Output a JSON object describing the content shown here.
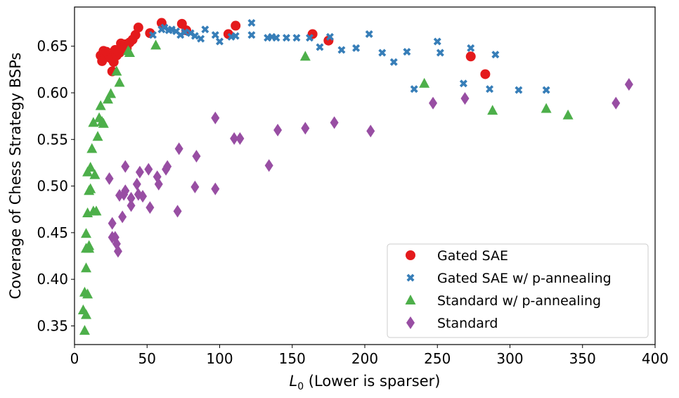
{
  "chart_data": {
    "type": "scatter",
    "xlabel_math": "L",
    "xlabel_sub": "0",
    "xlabel_rest": " (Lower is sparser)",
    "ylabel": "Coverage of Chess Strategy BSPs",
    "xlim": [
      0,
      400
    ],
    "ylim": [
      0.33,
      0.692
    ],
    "x_ticks": [
      0,
      50,
      100,
      150,
      200,
      250,
      300,
      350,
      400
    ],
    "x_tick_labels": [
      "0",
      "50",
      "100",
      "150",
      "200",
      "250",
      "300",
      "350",
      "400"
    ],
    "y_ticks": [
      0.35,
      0.4,
      0.45,
      0.5,
      0.55,
      0.6,
      0.65
    ],
    "y_tick_labels": [
      "0.35",
      "0.40",
      "0.45",
      "0.50",
      "0.55",
      "0.60",
      "0.65"
    ],
    "grid": false,
    "legend_position": "lower-right",
    "series": [
      {
        "name": "Gated SAE",
        "marker": "circle",
        "color": "#e41a1c",
        "points": [
          [
            18,
            0.64
          ],
          [
            19,
            0.634
          ],
          [
            20,
            0.645
          ],
          [
            21,
            0.638
          ],
          [
            22,
            0.644
          ],
          [
            23,
            0.642
          ],
          [
            24,
            0.64
          ],
          [
            25,
            0.637
          ],
          [
            26,
            0.623
          ],
          [
            27,
            0.633
          ],
          [
            27,
            0.644
          ],
          [
            28,
            0.646
          ],
          [
            29,
            0.64
          ],
          [
            30,
            0.645
          ],
          [
            31,
            0.643
          ],
          [
            32,
            0.653
          ],
          [
            33,
            0.648
          ],
          [
            34,
            0.65
          ],
          [
            35,
            0.652
          ],
          [
            36,
            0.648
          ],
          [
            38,
            0.654
          ],
          [
            40,
            0.657
          ],
          [
            42,
            0.662
          ],
          [
            44,
            0.67
          ],
          [
            52,
            0.664
          ],
          [
            60,
            0.675
          ],
          [
            74,
            0.674
          ],
          [
            77,
            0.667
          ],
          [
            106,
            0.663
          ],
          [
            111,
            0.672
          ],
          [
            164,
            0.663
          ],
          [
            175,
            0.656
          ],
          [
            273,
            0.639
          ],
          [
            283,
            0.62
          ]
        ]
      },
      {
        "name": "Gated SAE w/ p-annealing",
        "marker": "x",
        "color": "#377eb8",
        "points": [
          [
            54,
            0.662
          ],
          [
            60,
            0.668
          ],
          [
            62,
            0.67
          ],
          [
            65,
            0.667
          ],
          [
            67,
            0.668
          ],
          [
            70,
            0.666
          ],
          [
            73,
            0.662
          ],
          [
            76,
            0.665
          ],
          [
            80,
            0.664
          ],
          [
            83,
            0.661
          ],
          [
            87,
            0.658
          ],
          [
            90,
            0.668
          ],
          [
            97,
            0.662
          ],
          [
            100,
            0.655
          ],
          [
            108,
            0.66
          ],
          [
            111,
            0.661
          ],
          [
            122,
            0.662
          ],
          [
            122,
            0.675
          ],
          [
            133,
            0.659
          ],
          [
            136,
            0.66
          ],
          [
            139,
            0.659
          ],
          [
            146,
            0.659
          ],
          [
            153,
            0.659
          ],
          [
            162,
            0.659
          ],
          [
            169,
            0.649
          ],
          [
            176,
            0.66
          ],
          [
            184,
            0.646
          ],
          [
            194,
            0.648
          ],
          [
            203,
            0.663
          ],
          [
            212,
            0.643
          ],
          [
            220,
            0.633
          ],
          [
            229,
            0.644
          ],
          [
            234,
            0.604
          ],
          [
            250,
            0.655
          ],
          [
            252,
            0.643
          ],
          [
            268,
            0.61
          ],
          [
            273,
            0.648
          ],
          [
            286,
            0.604
          ],
          [
            290,
            0.641
          ],
          [
            306,
            0.603
          ],
          [
            325,
            0.603
          ]
        ]
      },
      {
        "name": "Standard w/ p-annealing",
        "marker": "triangle",
        "color": "#4daf4a",
        "points": [
          [
            6,
            0.367
          ],
          [
            7,
            0.386
          ],
          [
            7,
            0.345
          ],
          [
            8,
            0.362
          ],
          [
            8,
            0.449
          ],
          [
            8,
            0.433
          ],
          [
            8,
            0.412
          ],
          [
            9,
            0.384
          ],
          [
            9,
            0.471
          ],
          [
            9,
            0.515
          ],
          [
            10,
            0.495
          ],
          [
            10,
            0.436
          ],
          [
            10,
            0.433
          ],
          [
            11,
            0.52
          ],
          [
            11,
            0.497
          ],
          [
            12,
            0.54
          ],
          [
            13,
            0.473
          ],
          [
            13,
            0.568
          ],
          [
            14,
            0.512
          ],
          [
            15,
            0.473
          ],
          [
            16,
            0.553
          ],
          [
            17,
            0.573
          ],
          [
            18,
            0.586
          ],
          [
            19,
            0.569
          ],
          [
            20,
            0.567
          ],
          [
            23,
            0.593
          ],
          [
            25,
            0.599
          ],
          [
            29,
            0.623
          ],
          [
            31,
            0.611
          ],
          [
            37,
            0.645
          ],
          [
            38,
            0.643
          ],
          [
            56,
            0.651
          ],
          [
            159,
            0.639
          ],
          [
            241,
            0.61
          ],
          [
            288,
            0.581
          ],
          [
            325,
            0.583
          ],
          [
            340,
            0.576
          ]
        ]
      },
      {
        "name": "Standard",
        "marker": "diamond",
        "color": "#984ea3",
        "points": [
          [
            24,
            0.508
          ],
          [
            26,
            0.445
          ],
          [
            26,
            0.46
          ],
          [
            28,
            0.445
          ],
          [
            29,
            0.438
          ],
          [
            30,
            0.43
          ],
          [
            31,
            0.49
          ],
          [
            33,
            0.467
          ],
          [
            34,
            0.491
          ],
          [
            35,
            0.521
          ],
          [
            35,
            0.495
          ],
          [
            39,
            0.479
          ],
          [
            39,
            0.487
          ],
          [
            43,
            0.502
          ],
          [
            44,
            0.491
          ],
          [
            45,
            0.515
          ],
          [
            47,
            0.489
          ],
          [
            51,
            0.518
          ],
          [
            52,
            0.477
          ],
          [
            57,
            0.51
          ],
          [
            58,
            0.502
          ],
          [
            63,
            0.518
          ],
          [
            64,
            0.521
          ],
          [
            71,
            0.473
          ],
          [
            72,
            0.54
          ],
          [
            83,
            0.499
          ],
          [
            84,
            0.532
          ],
          [
            97,
            0.497
          ],
          [
            97,
            0.573
          ],
          [
            110,
            0.551
          ],
          [
            114,
            0.551
          ],
          [
            134,
            0.522
          ],
          [
            140,
            0.56
          ],
          [
            159,
            0.562
          ],
          [
            179,
            0.568
          ],
          [
            204,
            0.559
          ],
          [
            247,
            0.589
          ],
          [
            269,
            0.594
          ],
          [
            373,
            0.589
          ],
          [
            382,
            0.609
          ]
        ]
      }
    ]
  }
}
